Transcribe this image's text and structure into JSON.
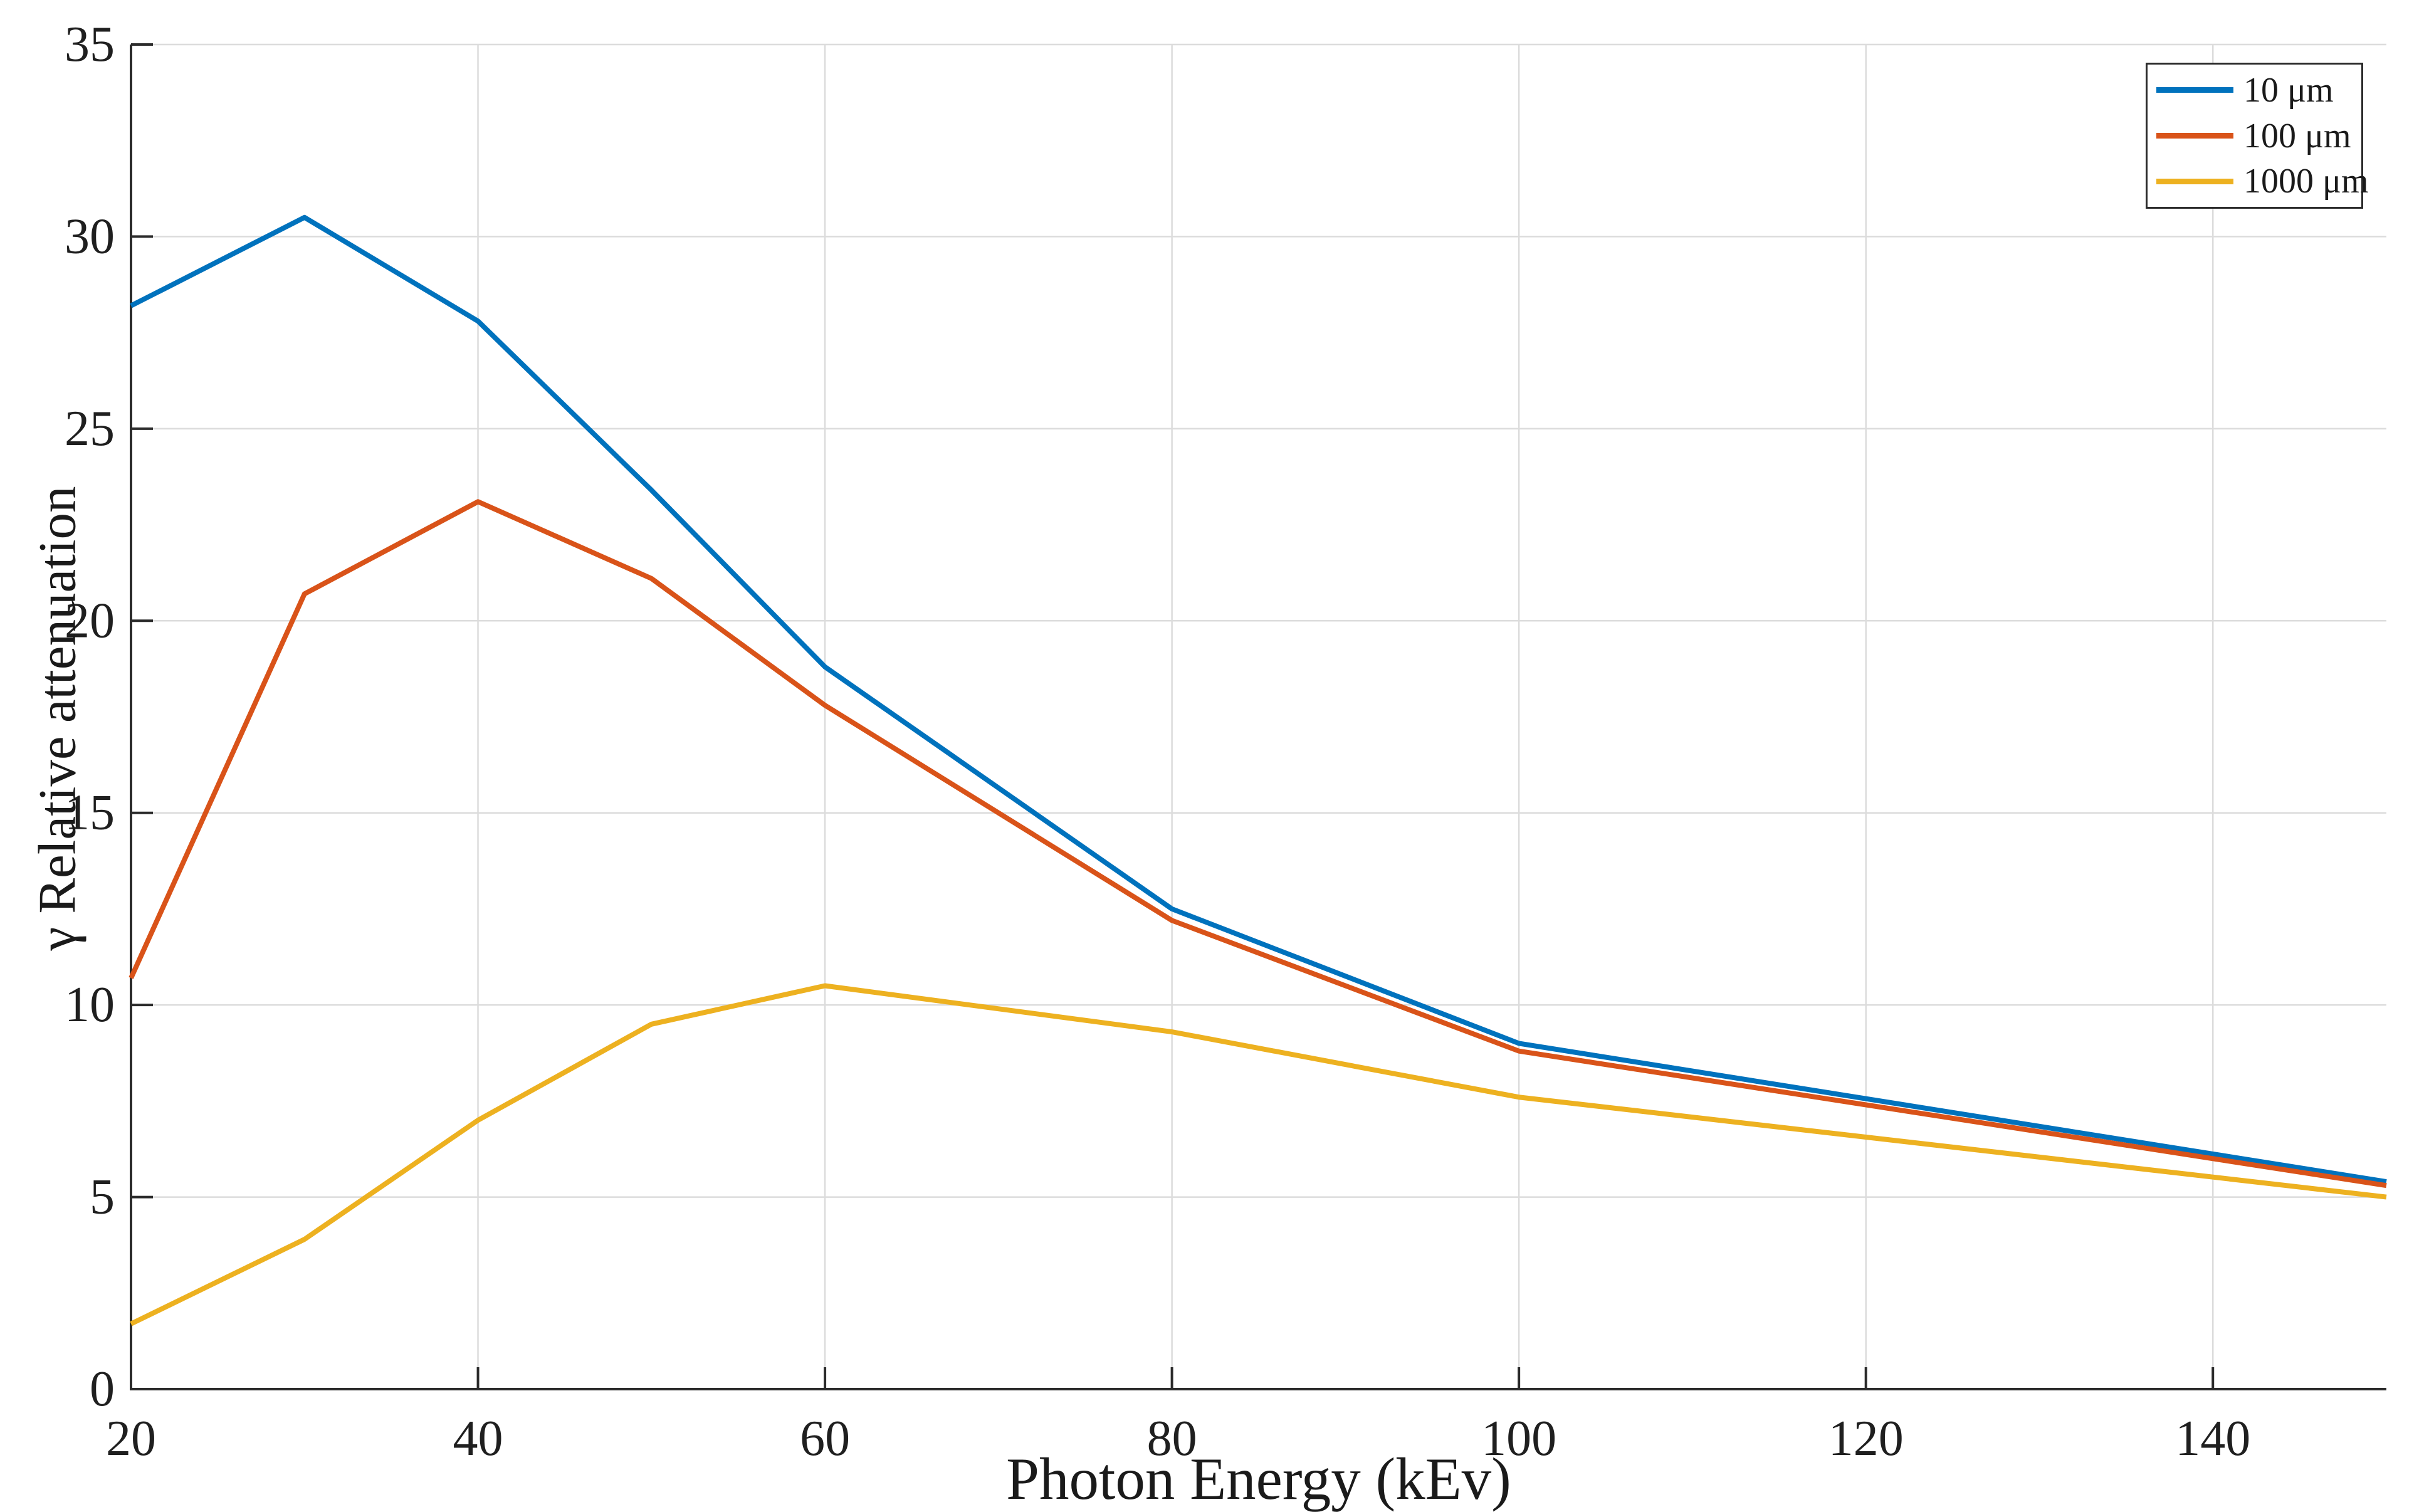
{
  "figure": {
    "background": "#ffffff",
    "text_color": "#1a1a1a",
    "axis_color": "#2b2b2b",
    "grid_color": "#dcdcdc"
  },
  "chart_data": {
    "type": "line",
    "title": "",
    "xlabel": "Photon Energy (kEv)",
    "ylabel": "γ Relative attenuation",
    "xlim": [
      20,
      150
    ],
    "ylim": [
      0,
      35
    ],
    "xticks": [
      20,
      40,
      60,
      80,
      100,
      120,
      140
    ],
    "yticks": [
      0,
      5,
      10,
      15,
      20,
      25,
      30,
      35
    ],
    "grid": true,
    "legend_position": "top-right",
    "x": [
      20,
      30,
      40,
      50,
      60,
      80,
      100,
      150
    ],
    "series": [
      {
        "name": "10 μm",
        "color": "#0072BD",
        "values": [
          28.2,
          30.5,
          27.8,
          23.4,
          18.8,
          12.5,
          9.0,
          5.4
        ]
      },
      {
        "name": "100 μm",
        "color": "#D95319",
        "values": [
          10.7,
          20.7,
          23.1,
          21.1,
          17.8,
          12.2,
          8.8,
          5.3
        ]
      },
      {
        "name": "1000 μm",
        "color": "#EDB120",
        "values": [
          1.7,
          3.9,
          7.0,
          9.5,
          10.5,
          9.3,
          7.6,
          5.0
        ]
      }
    ]
  }
}
